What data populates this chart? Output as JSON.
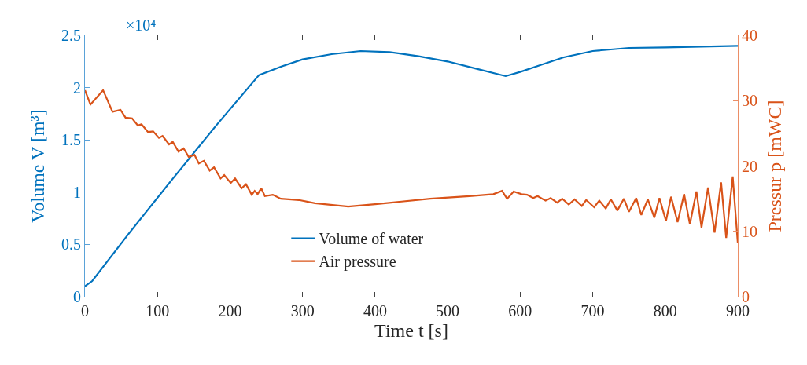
{
  "chart_data": {
    "type": "line",
    "xlabel": "Time t [s]",
    "ylabel": "Volume V [m³]",
    "y2label": "Pressur p [mWC]",
    "annotations": [
      "×10⁴"
    ],
    "xlim": [
      0,
      900
    ],
    "xticks": [
      0,
      100,
      200,
      300,
      400,
      500,
      600,
      700,
      800,
      900
    ],
    "ylim": [
      0,
      2.5
    ],
    "yticks": [
      0,
      0.5,
      1,
      1.5,
      2,
      2.5
    ],
    "y2lim": [
      0,
      40
    ],
    "y2ticks": [
      0,
      10,
      20,
      30,
      40
    ],
    "grid": false,
    "legend": "bottom",
    "marker": "none",
    "line_style": "solid",
    "series": [
      {
        "name": "Volume of water",
        "color": "#0072bd",
        "x": [
          0,
          10,
          60,
          120,
          180,
          240,
          270,
          300,
          340,
          380,
          420,
          460,
          500,
          540,
          580,
          600,
          630,
          660,
          700,
          750,
          800,
          900
        ],
        "values": [
          0.1,
          0.15,
          0.6,
          1.12,
          1.63,
          2.12,
          2.2,
          2.27,
          2.32,
          2.35,
          2.34,
          2.3,
          2.25,
          2.18,
          2.11,
          2.15,
          2.22,
          2.29,
          2.35,
          2.38,
          2.385,
          2.4
        ]
      },
      {
        "name": "Air pressure",
        "color": "#d95319",
        "axis": "y2",
        "x": [
          0,
          7.6,
          25,
          38,
          49,
          56,
          65,
          73,
          78,
          87,
          94,
          102,
          107,
          116,
          121,
          129,
          136,
          143,
          151,
          157,
          164,
          172,
          178,
          187,
          192,
          201,
          207,
          216,
          222,
          230,
          234,
          238,
          243,
          248,
          259,
          270,
          281,
          295,
          317,
          363,
          403,
          476,
          530,
          563,
          575,
          582,
          591,
          602,
          609.5,
          618,
          624,
          635,
          642,
          651,
          658,
          667,
          675,
          685,
          691,
          702,
          709,
          718,
          725,
          734,
          743,
          750,
          760,
          767,
          776,
          785,
          792,
          801,
          808,
          817,
          826,
          834,
          843,
          850,
          859,
          868,
          877,
          884,
          893,
          900
        ],
        "values": [
          31.6,
          29.4,
          31.6,
          28.3,
          28.6,
          27.4,
          27.3,
          26.2,
          26.4,
          25.2,
          25.3,
          24.3,
          24.6,
          23.3,
          23.7,
          22.2,
          22.7,
          21.4,
          21.7,
          20.4,
          20.8,
          19.3,
          19.8,
          18.1,
          18.6,
          17.4,
          18.1,
          16.6,
          17.2,
          15.6,
          16.2,
          15.7,
          16.6,
          15.4,
          15.6,
          15.0,
          14.9,
          14.8,
          14.3,
          13.8,
          14.2,
          15.0,
          15.4,
          15.7,
          16.2,
          15.0,
          16.1,
          15.7,
          15.6,
          15.1,
          15.4,
          14.7,
          15.1,
          14.4,
          15.0,
          14.1,
          14.9,
          13.9,
          14.8,
          13.7,
          14.7,
          13.5,
          14.9,
          13.2,
          15.0,
          13.0,
          15.1,
          12.5,
          14.9,
          12.1,
          15.1,
          11.6,
          15.3,
          11.4,
          15.7,
          11.1,
          16.1,
          10.6,
          16.7,
          9.8,
          17.5,
          9.0,
          18.4,
          8.2
        ]
      }
    ]
  }
}
